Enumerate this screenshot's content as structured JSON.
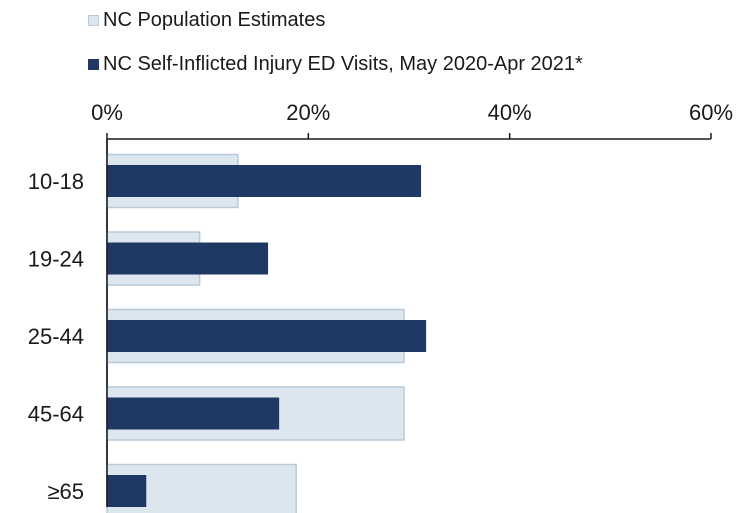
{
  "chart_data": {
    "type": "bar",
    "orientation": "horizontal",
    "categories": [
      "10-18",
      "19-24",
      "25-44",
      "45-64",
      "≥65"
    ],
    "series": [
      {
        "name": "NC Population Estimates",
        "values": [
          13,
          9.2,
          29.5,
          29.5,
          18.8
        ]
      },
      {
        "name": "NC Self-Inflicted Injury ED Visits, May 2020-Apr 2021*",
        "values": [
          31.2,
          16,
          31.7,
          17.1,
          3.9
        ]
      }
    ],
    "colors": [
      "#dce6ee",
      "#1f3864"
    ],
    "border_color": "#b8cad9",
    "xlim": [
      0,
      60
    ],
    "xticks": [
      0,
      20,
      40,
      60
    ],
    "xtick_labels": [
      "0%",
      "20%",
      "40%",
      "60%"
    ],
    "axis_position": "top",
    "legend_position": "top-left",
    "grid": false,
    "title": "",
    "xlabel": "",
    "ylabel": ""
  }
}
